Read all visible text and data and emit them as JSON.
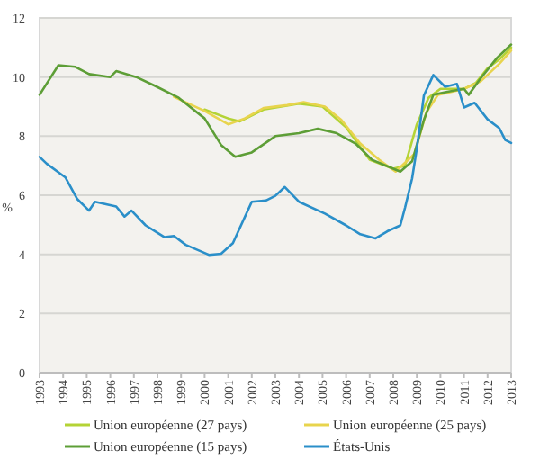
{
  "chart_data": {
    "type": "line",
    "ylabel": "%",
    "xlim": [
      1993,
      2013
    ],
    "xticks": [
      1993,
      1994,
      1995,
      1996,
      1997,
      1998,
      1999,
      2000,
      2001,
      2002,
      2003,
      2004,
      2005,
      2006,
      2007,
      2008,
      2009,
      2010,
      2011,
      2012,
      2013
    ],
    "ylim": [
      0,
      12
    ],
    "yticks": [
      0,
      2,
      4,
      6,
      8,
      10,
      12
    ],
    "grid": "y",
    "legend": "bottom",
    "line_style": "solid",
    "marker": "none",
    "series": [
      {
        "name": "Union européenne (27 pays)",
        "color": "#b4d335",
        "x": [
          2000,
          2001,
          2001.5,
          2002.5,
          2004,
          2005,
          2006,
          2007,
          2008,
          2008.5,
          2009,
          2009.5,
          2010,
          2011,
          2011.5,
          2012,
          2012.5,
          2013
        ],
        "values": [
          8.9,
          8.6,
          8.5,
          8.9,
          9.1,
          9.0,
          8.3,
          7.2,
          6.9,
          7.0,
          8.4,
          9.3,
          9.6,
          9.6,
          9.8,
          10.3,
          10.6,
          11.0
        ]
      },
      {
        "name": "Union européenne (25 pays)",
        "color": "#e8d44d",
        "x": [
          1998.7,
          2000,
          2001,
          2001.7,
          2002.5,
          2003.5,
          2004.2,
          2005.1,
          2005.8,
          2006.6,
          2007.4,
          2008.1,
          2008.9,
          2009.4,
          2009.9,
          2011,
          2011.7,
          2012.5,
          2013
        ],
        "values": [
          9.33,
          8.85,
          8.4,
          8.6,
          8.95,
          9.05,
          9.15,
          9.0,
          8.55,
          7.75,
          7.2,
          6.8,
          7.4,
          8.8,
          9.4,
          9.6,
          9.85,
          10.45,
          10.9
        ]
      },
      {
        "name": "Union européenne (15 pays)",
        "color": "#5d9e36",
        "x": [
          1993,
          1993.8,
          1994.5,
          1995.1,
          1996,
          1996.25,
          1997.1,
          1997.9,
          1998.9,
          2000,
          2000.7,
          2001.3,
          2002,
          2003,
          2004,
          2004.8,
          2005.6,
          2006.4,
          2007.1,
          2008,
          2008.3,
          2008.8,
          2009.3,
          2009.7,
          2010.3,
          2011,
          2011.2,
          2011.7,
          2012.4,
          2013
        ],
        "values": [
          9.4,
          10.4,
          10.35,
          10.1,
          10.0,
          10.2,
          10.0,
          9.7,
          9.3,
          8.6,
          7.7,
          7.3,
          7.45,
          8.0,
          8.1,
          8.25,
          8.1,
          7.75,
          7.2,
          6.9,
          6.8,
          7.15,
          8.55,
          9.4,
          9.5,
          9.6,
          9.4,
          9.95,
          10.65,
          11.1
        ]
      },
      {
        "name": "États-Unis",
        "color": "#2a8fc9",
        "x": [
          1993,
          1993.3,
          1994.1,
          1994.6,
          1995.1,
          1995.35,
          1996.25,
          1996.6,
          1996.9,
          1997.5,
          1998.3,
          1998.7,
          1999.2,
          2000.2,
          2000.7,
          2001.2,
          2002,
          2002.6,
          2003,
          2003.4,
          2004,
          2005.1,
          2006,
          2006.6,
          2007.25,
          2007.75,
          2008.3,
          2008.5,
          2008.8,
          2009,
          2009.3,
          2009.7,
          2010.2,
          2010.7,
          2011,
          2011.45,
          2012,
          2012.5,
          2012.75,
          2013
        ],
        "values": [
          7.3,
          7.07,
          6.6,
          5.87,
          5.48,
          5.78,
          5.62,
          5.28,
          5.48,
          4.98,
          4.58,
          4.62,
          4.32,
          3.98,
          4.02,
          4.38,
          5.78,
          5.82,
          5.98,
          6.28,
          5.78,
          5.38,
          4.98,
          4.68,
          4.54,
          4.78,
          4.98,
          5.58,
          6.57,
          7.58,
          9.38,
          10.07,
          9.67,
          9.77,
          8.97,
          9.13,
          8.57,
          8.27,
          7.87,
          7.77
        ]
      }
    ]
  }
}
